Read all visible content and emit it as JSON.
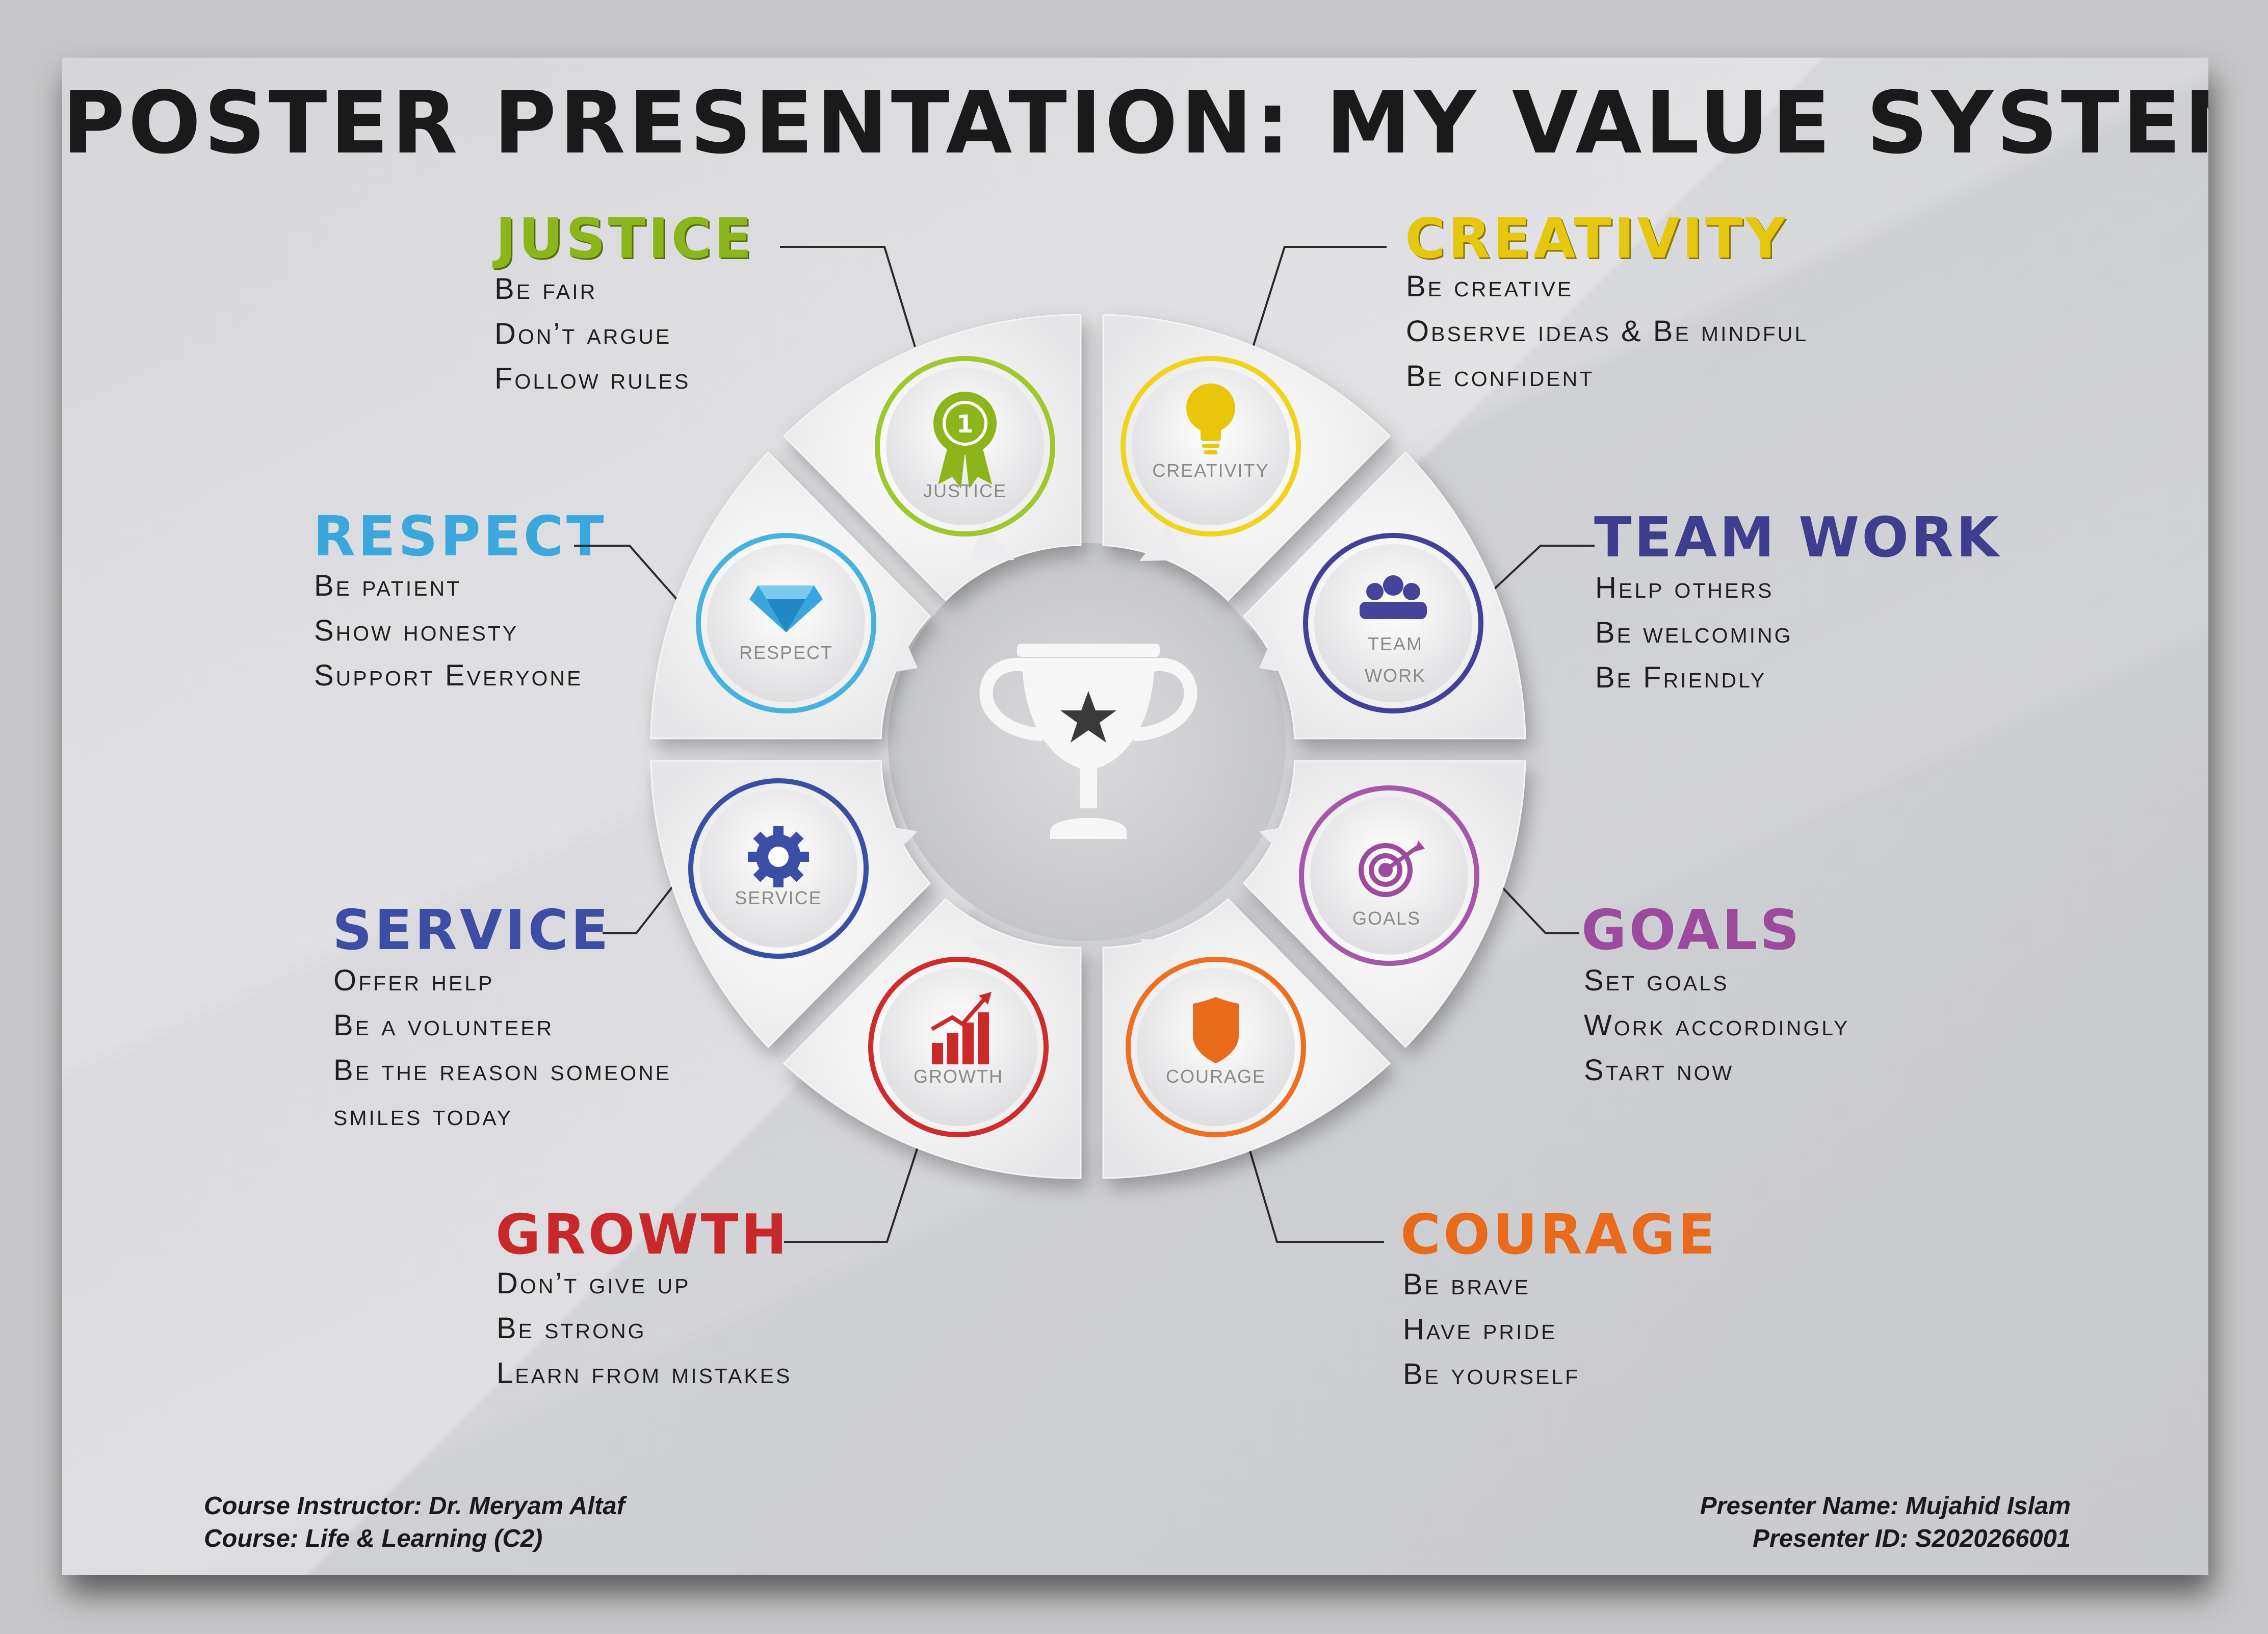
{
  "title": "POSTER PRESENTATION: MY VALUE SYSTEM",
  "values": {
    "justice": {
      "heading": "JUSTICE",
      "color": "#8cb51c",
      "lines": [
        "Be fair",
        "Don’t argue",
        "Follow rules"
      ],
      "icon_label": "JUSTICE",
      "icon": "award-ribbon-icon"
    },
    "creativity": {
      "heading": "CREATIVITY",
      "color": "#e6c70f",
      "lines": [
        "Be creative",
        "Observe ideas & Be mindful",
        "Be confident"
      ],
      "icon_label": "CREATIVITY",
      "icon": "lightbulb-icon"
    },
    "respect": {
      "heading": "RESPECT",
      "color": "#3aa8dc",
      "lines": [
        "Be patient",
        "Show honesty",
        "Support Everyone"
      ],
      "icon_label": "RESPECT",
      "icon": "diamond-icon"
    },
    "teamwork": {
      "heading": "TEAM WORK",
      "color": "#3f3d8e",
      "lines": [
        "Help others",
        "Be welcoming",
        "Be Friendly"
      ],
      "icon_label_1": "TEAM",
      "icon_label_2": "WORK",
      "icon": "team-icon"
    },
    "service": {
      "heading": "SERVICE",
      "color": "#3c4da3",
      "lines": [
        "Offer help",
        "Be a volunteer",
        "Be the reason someone",
        "smiles today"
      ],
      "icon_label": "SERVICE",
      "icon": "gear-icon"
    },
    "goals": {
      "heading": "GOALS",
      "color": "#9b4a9e",
      "lines": [
        "Set goals",
        "Work accordingly",
        "Start now"
      ],
      "icon_label": "GOALS",
      "icon": "target-icon"
    },
    "growth": {
      "heading": "GROWTH",
      "color": "#c8282a",
      "lines": [
        "Don’t give up",
        "Be strong",
        "Learn from mistakes"
      ],
      "icon_label": "GROWTH",
      "icon": "growth-chart-icon"
    },
    "courage": {
      "heading": "COURAGE",
      "color": "#ea6a1c",
      "lines": [
        "Be brave",
        "Have pride",
        "Be yourself"
      ],
      "icon_label": "COURAGE",
      "icon": "shield-icon"
    }
  },
  "center_icon": "trophy-icon",
  "footer": {
    "instructor": "Course Instructor: Dr. Meryam Altaf",
    "course": "Course: Life & Learning (C2)",
    "presenter_name": "Presenter Name: Mujahid Islam",
    "presenter_id": "Presenter ID: S2020266001"
  }
}
